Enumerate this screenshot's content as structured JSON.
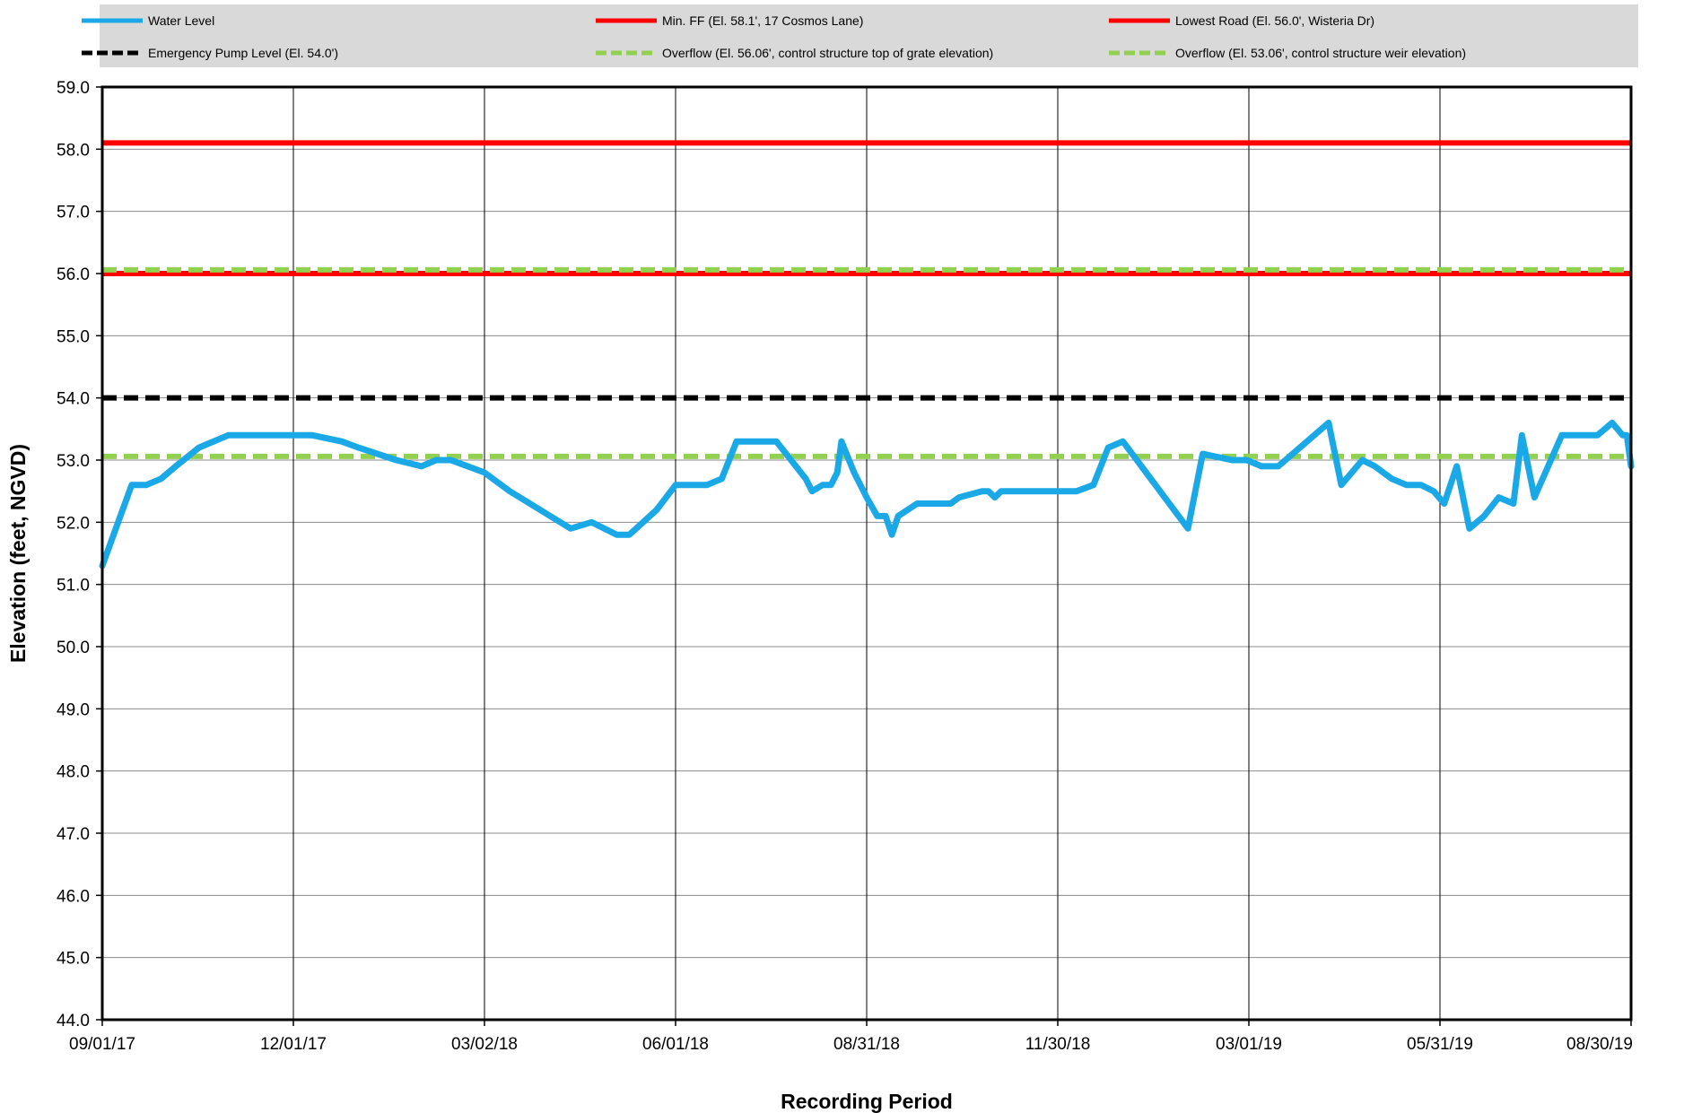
{
  "chart_data": {
    "type": "line",
    "title": "",
    "xlabel": "Recording Period",
    "ylabel": "Elevation (feet, NGVD)",
    "ylim": [
      44.0,
      59.0
    ],
    "y_ticks": [
      "44.0",
      "45.0",
      "46.0",
      "47.0",
      "48.0",
      "49.0",
      "50.0",
      "51.0",
      "52.0",
      "53.0",
      "54.0",
      "55.0",
      "56.0",
      "57.0",
      "58.0",
      "59.0"
    ],
    "x_range": [
      "2017-09-01",
      "2019-08-30"
    ],
    "x_ticks": [
      {
        "date": "2017-09-01",
        "label": "09/01/17"
      },
      {
        "date": "2017-12-01",
        "label": "12/01/17"
      },
      {
        "date": "2018-03-02",
        "label": "03/02/18"
      },
      {
        "date": "2018-06-01",
        "label": "06/01/18"
      },
      {
        "date": "2018-08-31",
        "label": "08/31/18"
      },
      {
        "date": "2018-11-30",
        "label": "11/30/18"
      },
      {
        "date": "2019-03-01",
        "label": "03/01/19"
      },
      {
        "date": "2019-05-31",
        "label": "05/31/19"
      },
      {
        "date": "2019-08-30",
        "label": "08/30/19"
      }
    ],
    "grid": true,
    "legend_position": "top",
    "series": [
      {
        "name": "Water Level",
        "color": "#1aa9e6",
        "style": "solid",
        "points": [
          [
            "2017-09-01",
            51.3
          ],
          [
            "2017-09-15",
            52.6
          ],
          [
            "2017-09-22",
            52.6
          ],
          [
            "2017-09-29",
            52.7
          ],
          [
            "2017-10-06",
            52.9
          ],
          [
            "2017-10-17",
            53.2
          ],
          [
            "2017-10-31",
            53.4
          ],
          [
            "2017-11-15",
            53.4
          ],
          [
            "2017-12-01",
            53.4
          ],
          [
            "2017-12-10",
            53.4
          ],
          [
            "2017-12-24",
            53.3
          ],
          [
            "2018-01-01",
            53.2
          ],
          [
            "2018-01-19",
            53.0
          ],
          [
            "2018-01-31",
            52.9
          ],
          [
            "2018-02-07",
            53.0
          ],
          [
            "2018-02-14",
            53.0
          ],
          [
            "2018-03-02",
            52.8
          ],
          [
            "2018-03-14",
            52.5
          ],
          [
            "2018-04-12",
            51.9
          ],
          [
            "2018-04-22",
            52.0
          ],
          [
            "2018-05-04",
            51.8
          ],
          [
            "2018-05-10",
            51.8
          ],
          [
            "2018-05-23",
            52.2
          ],
          [
            "2018-06-01",
            52.6
          ],
          [
            "2018-06-16",
            52.6
          ],
          [
            "2018-06-23",
            52.7
          ],
          [
            "2018-06-30",
            53.3
          ],
          [
            "2018-07-19",
            53.3
          ],
          [
            "2018-07-26",
            53.0
          ],
          [
            "2018-08-02",
            52.7
          ],
          [
            "2018-08-05",
            52.5
          ],
          [
            "2018-08-10",
            52.6
          ],
          [
            "2018-08-14",
            52.6
          ],
          [
            "2018-08-17",
            52.8
          ],
          [
            "2018-08-19",
            53.3
          ],
          [
            "2018-08-25",
            52.8
          ],
          [
            "2018-08-31",
            52.4
          ],
          [
            "2018-09-05",
            52.1
          ],
          [
            "2018-09-09",
            52.1
          ],
          [
            "2018-09-12",
            51.8
          ],
          [
            "2018-09-15",
            52.1
          ],
          [
            "2018-09-24",
            52.3
          ],
          [
            "2018-10-05",
            52.3
          ],
          [
            "2018-10-10",
            52.3
          ],
          [
            "2018-10-14",
            52.4
          ],
          [
            "2018-10-25",
            52.5
          ],
          [
            "2018-10-28",
            52.5
          ],
          [
            "2018-10-31",
            52.4
          ],
          [
            "2018-11-03",
            52.5
          ],
          [
            "2018-11-30",
            52.5
          ],
          [
            "2018-12-09",
            52.5
          ],
          [
            "2018-12-17",
            52.6
          ],
          [
            "2018-12-24",
            53.2
          ],
          [
            "2018-12-31",
            53.3
          ],
          [
            "2019-01-31",
            51.9
          ],
          [
            "2019-02-07",
            53.1
          ],
          [
            "2019-02-21",
            53.0
          ],
          [
            "2019-02-28",
            53.0
          ],
          [
            "2019-03-07",
            52.9
          ],
          [
            "2019-03-15",
            52.9
          ],
          [
            "2019-04-08",
            53.6
          ],
          [
            "2019-04-14",
            52.6
          ],
          [
            "2019-04-24",
            53.0
          ],
          [
            "2019-04-30",
            52.9
          ],
          [
            "2019-05-08",
            52.7
          ],
          [
            "2019-05-15",
            52.6
          ],
          [
            "2019-05-22",
            52.6
          ],
          [
            "2019-05-28",
            52.5
          ],
          [
            "2019-06-02",
            52.3
          ],
          [
            "2019-06-08",
            52.9
          ],
          [
            "2019-06-14",
            51.9
          ],
          [
            "2019-06-21",
            52.1
          ],
          [
            "2019-06-28",
            52.4
          ],
          [
            "2019-07-05",
            52.3
          ],
          [
            "2019-07-09",
            53.4
          ],
          [
            "2019-07-15",
            52.4
          ],
          [
            "2019-07-28",
            53.4
          ],
          [
            "2019-08-14",
            53.4
          ],
          [
            "2019-08-21",
            53.6
          ],
          [
            "2019-08-26",
            53.4
          ],
          [
            "2019-08-28",
            53.4
          ],
          [
            "2019-08-30",
            52.9
          ]
        ]
      },
      {
        "name": "Min. FF (El. 58.1', 17 Cosmos Lane)",
        "color": "#ff0000",
        "style": "solid",
        "value": 58.1
      },
      {
        "name": "Lowest Road (El. 56.0', Wisteria Dr)",
        "color": "#ff0000",
        "style": "solid",
        "value": 56.0
      },
      {
        "name": "Emergency Pump Level (El. 54.0')",
        "color": "#000000",
        "style": "dashed",
        "value": 54.0
      },
      {
        "name": "Overflow (El. 56.06', control structure top of grate elevation)",
        "color": "#92d050",
        "style": "dashed",
        "value": 56.06
      },
      {
        "name": "Overflow (El. 53.06', control structure weir elevation)",
        "color": "#92d050",
        "style": "dashed",
        "value": 53.06
      }
    ]
  }
}
